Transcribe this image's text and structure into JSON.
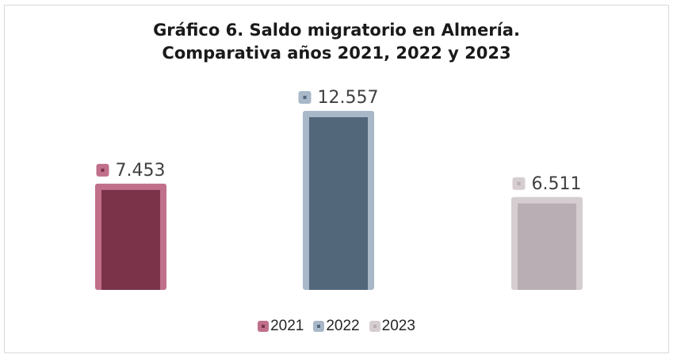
{
  "chart_data": {
    "type": "bar",
    "title": "Gráfico 6. Saldo migratorio en Almería.",
    "subtitle": "Comparativa años 2021, 2022 y 2023",
    "categories": [
      "2021",
      "2022",
      "2023"
    ],
    "values": [
      7453,
      12557,
      6511
    ],
    "data_labels": [
      "7.453",
      "12.557",
      "6.511"
    ],
    "ylim": [
      0,
      15000
    ],
    "grid": false,
    "legend_position": "bottom",
    "colors": [
      {
        "outer": "#c0708a",
        "inner": "#7a3349"
      },
      {
        "outer": "#a8b8c8",
        "inner": "#52677a"
      },
      {
        "outer": "#d6cdd1",
        "inner": "#b9aeb4"
      }
    ]
  }
}
